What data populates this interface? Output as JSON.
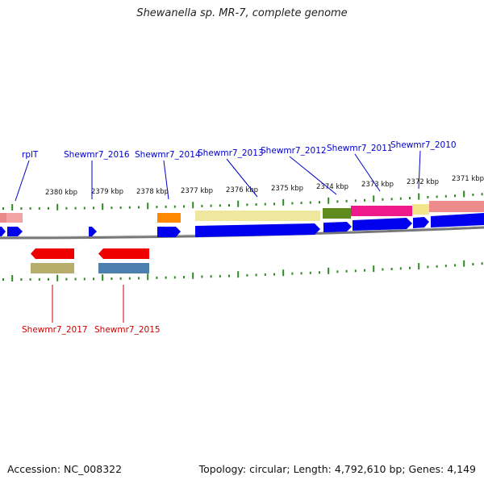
{
  "title": "Shewanella sp. MR-7, complete genome",
  "footer": {
    "accession": "Accession: NC_008322",
    "summary": "Topology: circular; Length: 4,792,610 bp; Genes: 4,149"
  },
  "colors": {
    "forward_cds": "#0000ee",
    "reverse_cds": "#ee0000",
    "forward_label": "#0000cc",
    "reverse_label": "#cc0000",
    "tick": "#2e8b22",
    "backbone": "#777777"
  },
  "tick_labels": [
    "2380 kbp",
    "2379 kbp",
    "2378 kbp",
    "2377 kbp",
    "2376 kbp",
    "2375 kbp",
    "2374 kbp",
    "2373 kbp",
    "2372 kbp",
    "2371 kbp"
  ],
  "forward_gene_labels": [
    "rplT",
    "Shewmr7_2016",
    "Shewmr7_2014",
    "Shewmr7_2013",
    "Shewmr7_2012",
    "Shewmr7_2011",
    "Shewmr7_2010"
  ],
  "reverse_gene_labels": [
    "Shewmr7_2017",
    "Shewmr7_2015"
  ]
}
